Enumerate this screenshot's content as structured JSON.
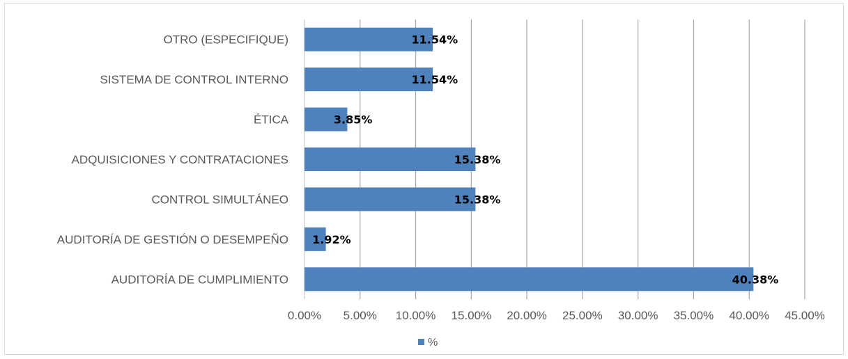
{
  "chart_data": {
    "type": "bar",
    "orientation": "horizontal",
    "categories": [
      "AUDITORÍA DE CUMPLIMIENTO",
      "AUDITORÍA DE GESTIÓN O DESEMPEÑO",
      "CONTROL SIMULTÁNEO",
      "ADQUISICIONES Y CONTRATACIONES",
      "ÉTICA",
      "SISTEMA DE CONTROL INTERNO",
      "OTRO (ESPECIFIQUE)"
    ],
    "series": [
      {
        "name": "%",
        "values": [
          40.38,
          1.92,
          15.38,
          15.38,
          3.85,
          11.54,
          11.54
        ],
        "labels": [
          "40.38%",
          "1.92%",
          "15.38%",
          "15.38%",
          "3.85%",
          "11.54%",
          "11.54%"
        ],
        "color": "#4f81bd"
      }
    ],
    "xlim": [
      0,
      45
    ],
    "xticks": [
      0,
      5,
      10,
      15,
      20,
      25,
      30,
      35,
      40,
      45
    ],
    "xtick_labels": [
      "0.00%",
      "5.00%",
      "10.00%",
      "15.00%",
      "20.00%",
      "25.00%",
      "30.00%",
      "35.00%",
      "40.00%",
      "45.00%"
    ],
    "grid": "vertical",
    "legend": "bottom",
    "title": "",
    "xlabel": "",
    "ylabel": ""
  }
}
